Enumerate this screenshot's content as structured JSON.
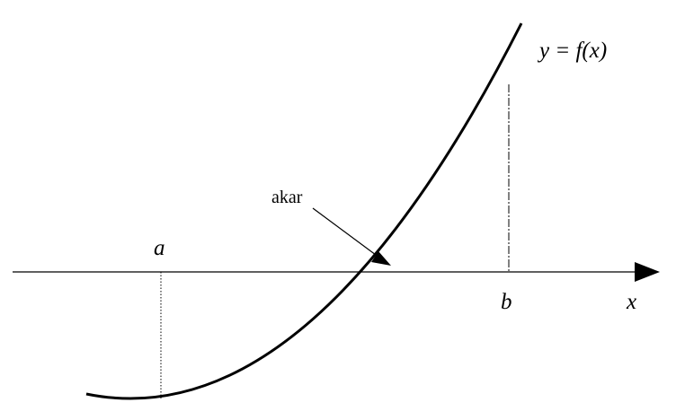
{
  "labels": {
    "function": "y = f(x)",
    "root": "akar",
    "x_axis": "x",
    "a": "a",
    "b": "b"
  },
  "colors": {
    "stroke": "#000000",
    "background": "#ffffff"
  }
}
